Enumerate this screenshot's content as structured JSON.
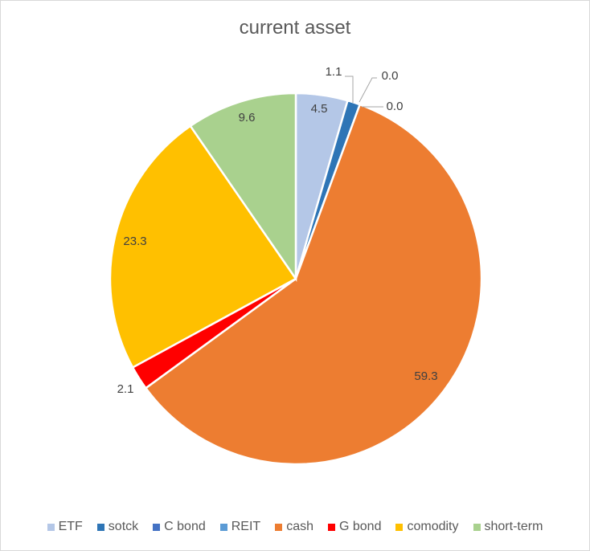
{
  "chart_data": {
    "type": "pie",
    "title": "current asset",
    "categories": [
      "ETF",
      "sotck",
      "C bond",
      "REIT",
      "cash",
      "G bond",
      "comodity",
      "short-term"
    ],
    "values": [
      4.5,
      1.1,
      0.0,
      0.0,
      59.3,
      2.1,
      23.3,
      9.6
    ],
    "labels": [
      "4.5",
      "1.1",
      "0.0",
      "0.0",
      "59.3",
      "2.1",
      "23.3",
      "9.6"
    ],
    "colors": [
      "#b4c7e7",
      "#2e75b6",
      "#4472c4",
      "#5b9bd5",
      "#ed7d31",
      "#ff0000",
      "#ffc000",
      "#a9d18e"
    ],
    "legend_position": "bottom"
  }
}
